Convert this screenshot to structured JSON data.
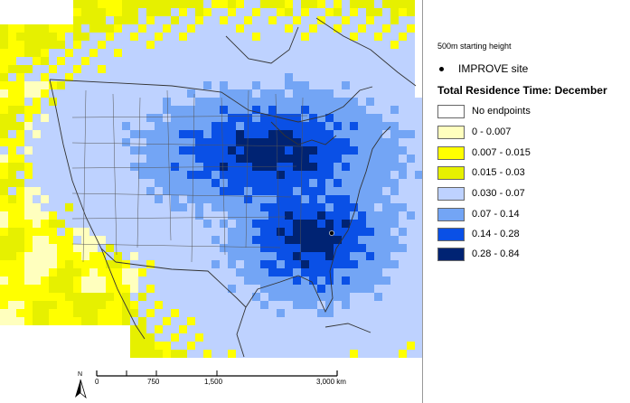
{
  "legend": {
    "starting_height": "500m starting height",
    "site_label": "IMPROVE site",
    "title": "Total Residence Time: December",
    "classes": [
      {
        "label": "No endpoints",
        "color": "#ffffff"
      },
      {
        "label": "0 - 0.007",
        "color": "#ffffbe"
      },
      {
        "label": "0.007 - 0.015",
        "color": "#ffff00"
      },
      {
        "label": "0.015 - 0.03",
        "color": "#e6f000"
      },
      {
        "label": "0.030 - 0.07",
        "color": "#bed2ff"
      },
      {
        "label": "0.07 - 0.14",
        "color": "#73a5f5"
      },
      {
        "label": "0.14 - 0.28",
        "color": "#0a50e6"
      },
      {
        "label": "0.28 - 0.84",
        "color": "#002373"
      }
    ]
  },
  "scale": {
    "labels": [
      "0",
      "750",
      "1,500",
      "3,000 km"
    ]
  },
  "north_label": "N"
}
